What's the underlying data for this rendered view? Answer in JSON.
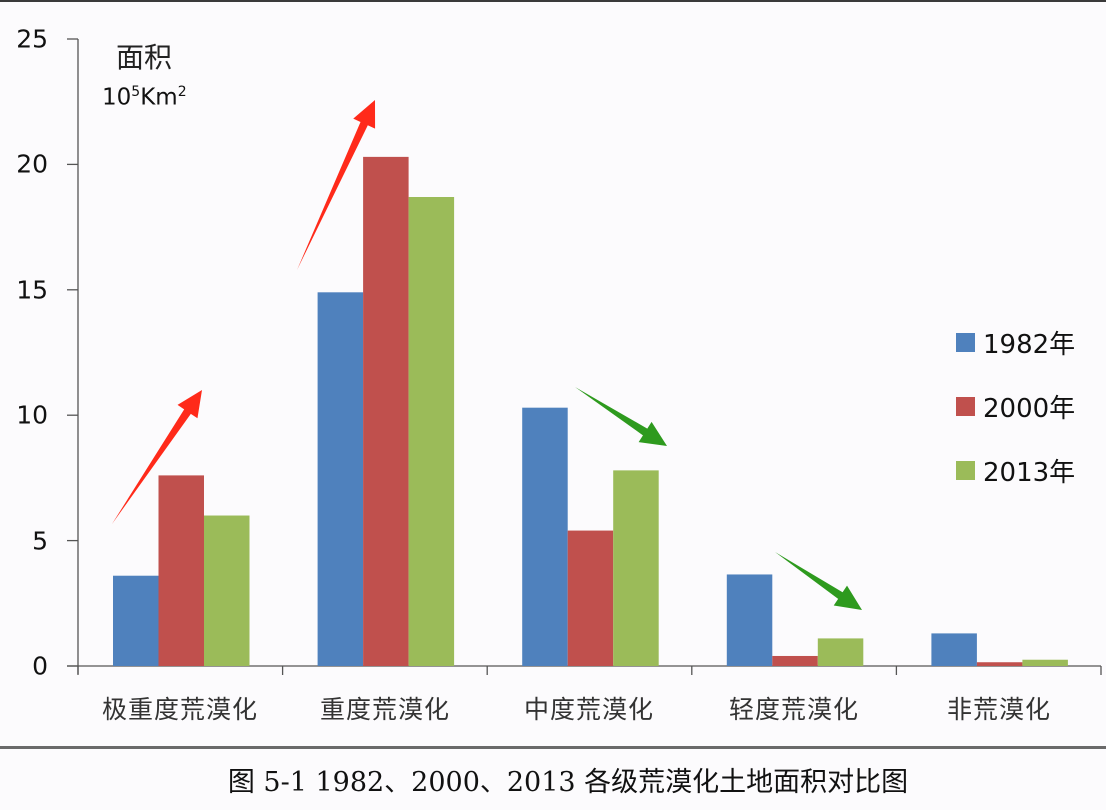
{
  "chart_data": {
    "type": "bar",
    "title": "",
    "caption": "图 5-1 1982、2000、2013 各级荒漠化土地面积对比图",
    "xlabel": "",
    "ylabel": "面积",
    "ylabel_unit": "10^5 Km^2",
    "ylim": [
      0,
      25
    ],
    "yticks": [
      0,
      5,
      10,
      15,
      20,
      25
    ],
    "grid": false,
    "legend_position": "right",
    "categories": [
      "极重度荒漠化",
      "重度荒漠化",
      "中度荒漠化",
      "轻度荒漠化",
      "非荒漠化"
    ],
    "series": [
      {
        "name": "1982年",
        "color": "#4f81bd",
        "values": [
          3.6,
          14.9,
          10.3,
          3.65,
          1.3
        ]
      },
      {
        "name": "2000年",
        "color": "#c0504d",
        "values": [
          7.6,
          20.3,
          5.4,
          0.4,
          0.15
        ]
      },
      {
        "name": "2013年",
        "color": "#9bbb59",
        "values": [
          6.0,
          18.7,
          7.8,
          1.1,
          0.25
        ]
      }
    ],
    "annotations": [
      {
        "type": "arrow",
        "direction": "up",
        "color": "#ff2a1a",
        "category": "极重度荒漠化"
      },
      {
        "type": "arrow",
        "direction": "up",
        "color": "#ff2a1a",
        "category": "重度荒漠化"
      },
      {
        "type": "arrow",
        "direction": "down",
        "color": "#2e9a1e",
        "category": "中度荒漠化"
      },
      {
        "type": "arrow",
        "direction": "down",
        "color": "#2e9a1e",
        "category": "轻度荒漠化"
      }
    ]
  },
  "axis": {
    "title": "面积",
    "unit_base": "10",
    "unit_exp": "5",
    "unit_rest": "Km",
    "unit_exp2": "2",
    "ticks": [
      "0",
      "5",
      "10",
      "15",
      "20",
      "25"
    ]
  },
  "categories": [
    "极重度荒漠化",
    "重度荒漠化",
    "中度荒漠化",
    "轻度荒漠化",
    "非荒漠化"
  ],
  "legend": [
    {
      "label": "1982年",
      "color": "#4f81bd"
    },
    {
      "label": "2000年",
      "color": "#c0504d"
    },
    {
      "label": "2013年",
      "color": "#9bbb59"
    }
  ],
  "caption": "图 5-1 1982、2000、2013 各级荒漠化土地面积对比图"
}
